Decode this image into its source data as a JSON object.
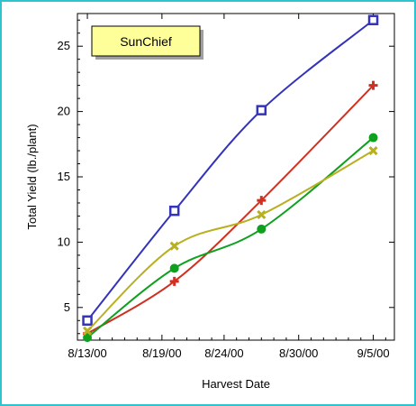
{
  "chart_data": {
    "type": "line",
    "title": "",
    "xlabel": "Harvest Date",
    "ylabel": "Total Yield (lb./plant)",
    "x_tick_labels": [
      "8/13/00",
      "8/19/00",
      "8/24/00",
      "8/30/00",
      "9/5/00"
    ],
    "x_tick_days": [
      0,
      6,
      11,
      17,
      23
    ],
    "y_ticks": [
      "5",
      "10",
      "15",
      "20",
      "25"
    ],
    "ylim": [
      2.5,
      27.5
    ],
    "xlim_days": [
      -0.8,
      24.7
    ],
    "legend_box_label": "SunChief",
    "legend_box_color": "#ffff99",
    "grid": false,
    "series": [
      {
        "color": "#3333bb",
        "marker": "square",
        "points": [
          {
            "x": "8/13/00",
            "y": 4.0
          },
          {
            "x": "8/20/00",
            "y": 12.4
          },
          {
            "x": "8/27/00",
            "y": 20.1
          },
          {
            "x": "9/5/00",
            "y": 27.0
          }
        ]
      },
      {
        "color": "#d03020",
        "marker": "plus",
        "points": [
          {
            "x": "8/13/00",
            "y": 3.0
          },
          {
            "x": "8/20/00",
            "y": 7.0
          },
          {
            "x": "8/27/00",
            "y": 13.2
          },
          {
            "x": "9/5/00",
            "y": 22.0
          }
        ]
      },
      {
        "color": "#10a020",
        "marker": "circle",
        "points": [
          {
            "x": "8/13/00",
            "y": 2.7
          },
          {
            "x": "8/20/00",
            "y": 8.0
          },
          {
            "x": "8/27/00",
            "y": 11.0
          },
          {
            "x": "9/5/00",
            "y": 18.0
          }
        ]
      },
      {
        "color": "#b8b020",
        "marker": "x",
        "points": [
          {
            "x": "8/13/00",
            "y": 3.2
          },
          {
            "x": "8/20/00",
            "y": 9.7
          },
          {
            "x": "8/27/00",
            "y": 12.1
          },
          {
            "x": "9/5/00",
            "y": 17.0
          }
        ]
      }
    ]
  }
}
